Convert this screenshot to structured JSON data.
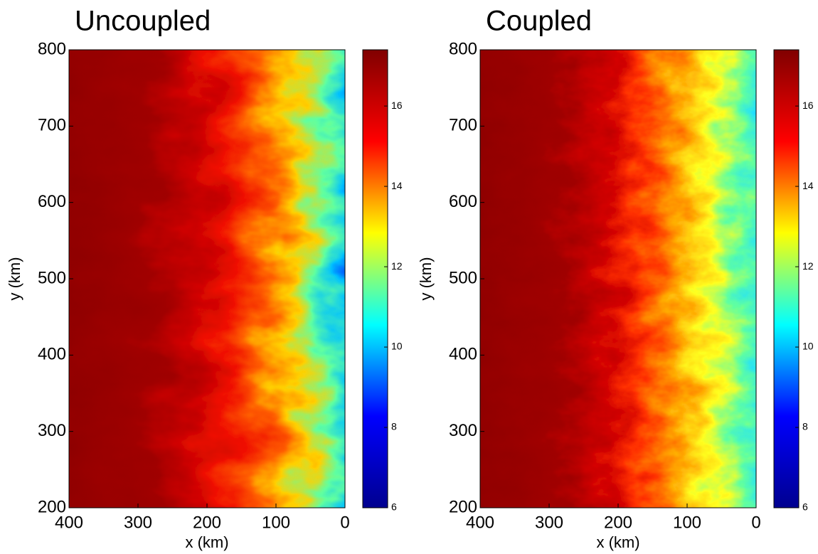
{
  "chart_data": [
    {
      "type": "heatmap",
      "title": "Uncoupled",
      "xlabel": "x (km)",
      "ylabel": "y (km)",
      "xlim": [
        400,
        0
      ],
      "xticks": [
        400,
        300,
        200,
        100,
        0
      ],
      "ylim": [
        200,
        800
      ],
      "yticks": [
        200,
        300,
        400,
        500,
        600,
        700,
        800
      ],
      "colormap": "jet",
      "clim": [
        6,
        17.4
      ],
      "cticks": [
        6,
        8,
        10,
        12,
        14,
        16
      ]
    },
    {
      "type": "heatmap",
      "title": "Coupled",
      "xlabel": "x (km)",
      "ylabel": "y (km)",
      "xlim": [
        400,
        0
      ],
      "xticks": [
        400,
        300,
        200,
        100,
        0
      ],
      "ylim": [
        200,
        800
      ],
      "yticks": [
        200,
        300,
        400,
        500,
        600,
        700,
        800
      ],
      "colormap": "jet",
      "clim": [
        6,
        17.4
      ],
      "cticks": [
        6,
        8,
        10,
        12,
        14,
        16
      ]
    }
  ]
}
